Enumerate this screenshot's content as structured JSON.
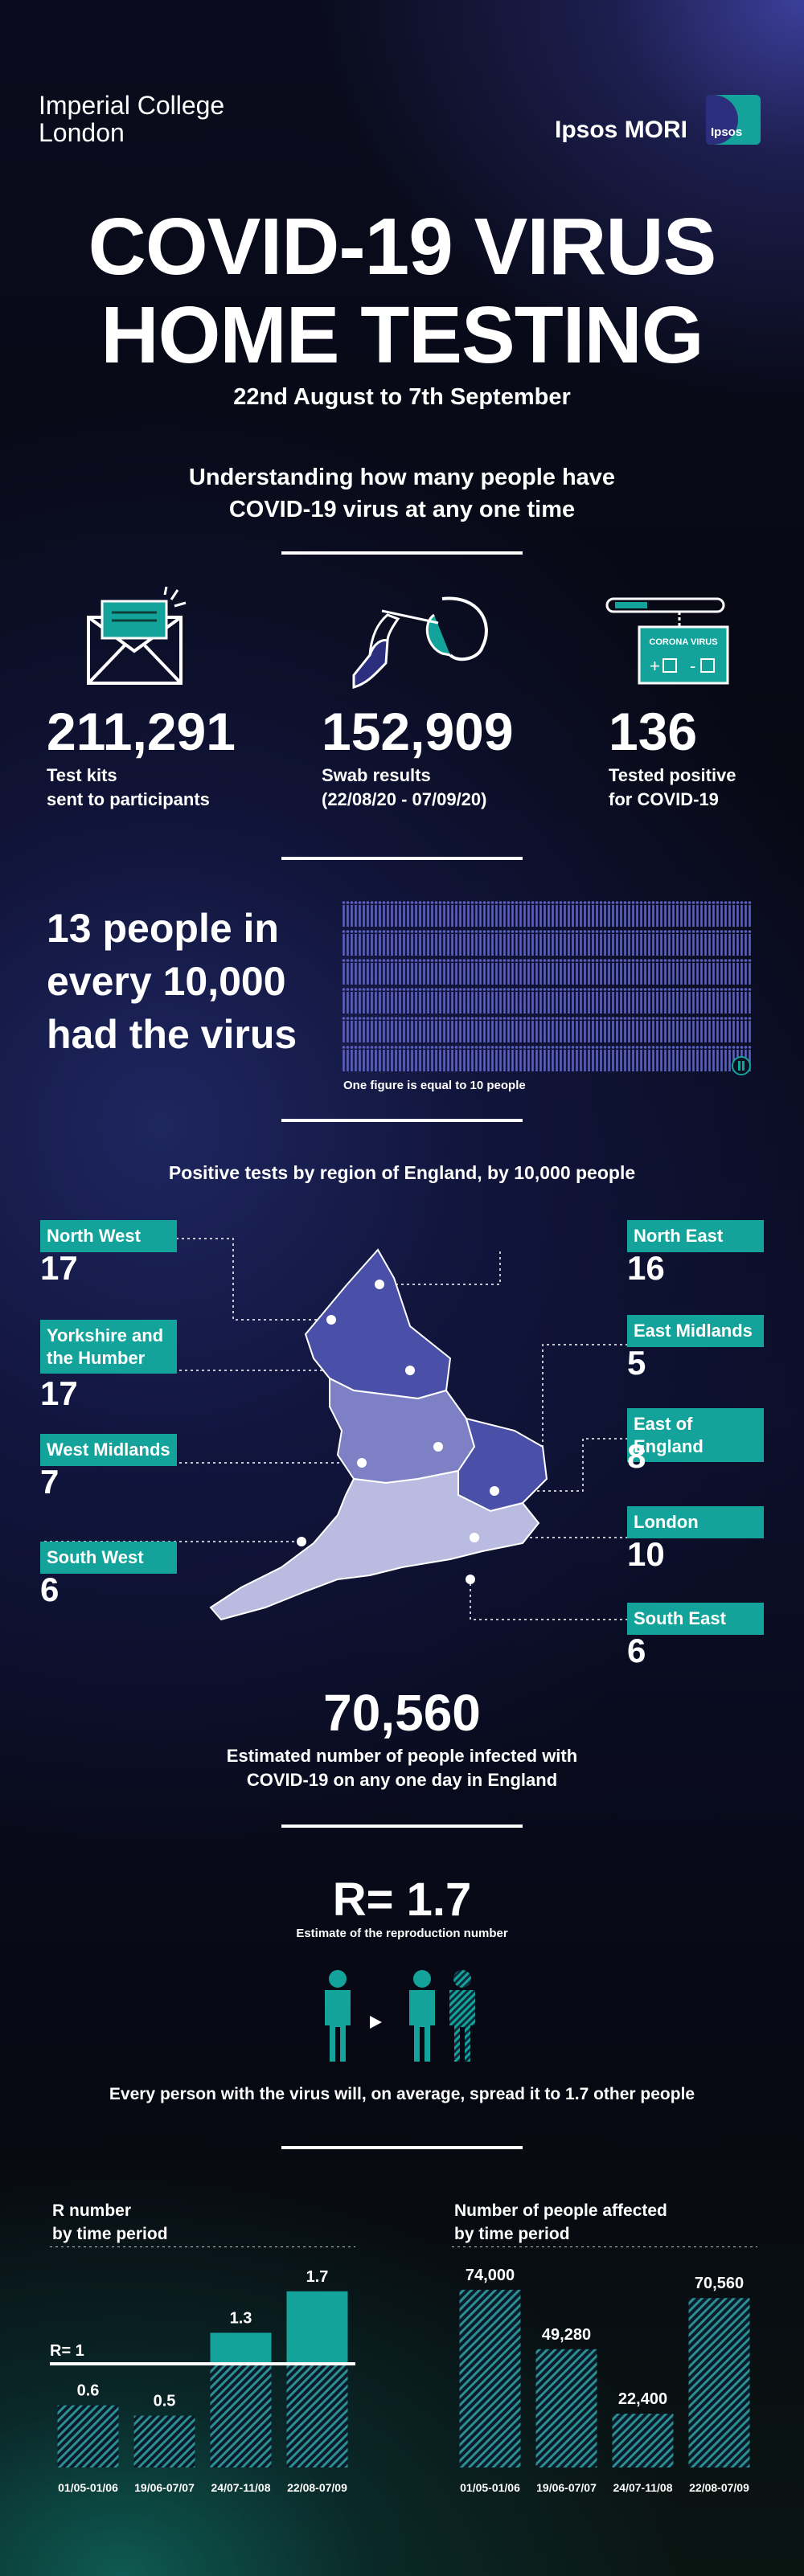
{
  "header": {
    "logo_left": [
      "Imperial College",
      "London"
    ],
    "logo_right": "Ipsos MORI",
    "badge": "Ipsos"
  },
  "title": {
    "line1": "COVID-19 VIRUS",
    "line2": "HOME TESTING",
    "dates": "22nd August to 7th September"
  },
  "intro": [
    "Understanding how many people have",
    "COVID-19 virus at any one time"
  ],
  "stats": [
    {
      "value": "211,291",
      "label": [
        "Test kits",
        "sent to participants"
      ],
      "icon": "envelope-icon"
    },
    {
      "value": "152,909",
      "label": [
        "Swab results",
        "(22/08/20 - 07/09/20)"
      ],
      "icon": "swab-icon"
    },
    {
      "value": "136",
      "label": [
        "Tested positive",
        "for COVID-19"
      ],
      "icon": "test-kit-icon",
      "kit_label": "CORONA VIRUS"
    }
  ],
  "people": {
    "headline": [
      "13 people in",
      "every 10,000",
      "had the virus"
    ],
    "note": "One figure is equal to 10 people",
    "highlight": "13"
  },
  "regions": {
    "title": "Positive tests by region of England, by 10,000 people",
    "left": [
      {
        "name": [
          "North West"
        ],
        "value": "17"
      },
      {
        "name": [
          "Yorkshire and",
          "the Humber"
        ],
        "value": "17"
      },
      {
        "name": [
          "West Midlands"
        ],
        "value": "7"
      },
      {
        "name": [
          "South West"
        ],
        "value": "6"
      }
    ],
    "right": [
      {
        "name": [
          "North East"
        ],
        "value": "16"
      },
      {
        "name": [
          "East Midlands"
        ],
        "value": "5"
      },
      {
        "name": [
          "East of England"
        ],
        "value": "8"
      },
      {
        "name": [
          "London"
        ],
        "value": "10"
      },
      {
        "name": [
          "South East"
        ],
        "value": "6"
      }
    ],
    "colors": {
      "north": "#4a4fa8",
      "mid": "#7d80c4",
      "south": "#b9bbe0"
    }
  },
  "estimate": {
    "value": "70,560",
    "label": [
      "Estimated number of people infected with",
      "COVID-19 on any one day in England"
    ]
  },
  "rnum": {
    "value": "R= 1.7",
    "label": "Estimate of the reproduction number",
    "desc": "Every person with the virus will, on average, spread it to 1.7 other people"
  },
  "chart_data": [
    {
      "type": "bar",
      "title": [
        "R number",
        "by time period"
      ],
      "categories": [
        "01/05-01/06",
        "19/06-07/07",
        "24/07-11/08",
        "22/08-07/09"
      ],
      "values": [
        0.6,
        0.5,
        1.3,
        1.7
      ],
      "labels": [
        "0.6",
        "0.5",
        "1.3",
        "1.7"
      ],
      "reference_line": {
        "value": 1,
        "label": "R= 1"
      },
      "ylim": [
        0,
        1.9
      ],
      "colors": {
        "hatched": "#2a8f93",
        "solid": "#14a39a"
      }
    },
    {
      "type": "bar",
      "title": [
        "Number of people affected",
        "by time period"
      ],
      "categories": [
        "01/05-01/06",
        "19/06-07/07",
        "24/07-11/08",
        "22/08-07/09"
      ],
      "values": [
        74000,
        49280,
        22400,
        70560
      ],
      "labels": [
        "74,000",
        "49,280",
        "22,400",
        "70,560"
      ],
      "ylim": [
        0,
        82000
      ]
    }
  ]
}
